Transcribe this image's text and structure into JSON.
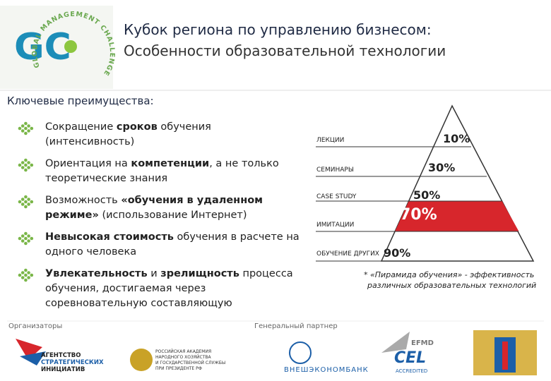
{
  "header": {
    "title_line1": "Кубок региона по управлению бизнесом:",
    "title_line2": "Особенности образовательной технологии",
    "logo_ring": "GLOBAL MANAGEMENT CHALLENGE",
    "logo_letters": "GC"
  },
  "section_title": "Ключевые преимущества:",
  "bullets": [
    {
      "segments": [
        {
          "text": "Сокращение ",
          "bold": false
        },
        {
          "text": "сроков",
          "bold": true
        },
        {
          "text": " обучения (интенсивность)",
          "bold": false
        }
      ]
    },
    {
      "segments": [
        {
          "text": "Ориентация на ",
          "bold": false
        },
        {
          "text": "компетенции",
          "bold": true
        },
        {
          "text": ", а не только теоретические знания",
          "bold": false
        }
      ]
    },
    {
      "segments": [
        {
          "text": "Возможность ",
          "bold": false
        },
        {
          "text": "«обучения в удаленном режиме»",
          "bold": true
        },
        {
          "text": " (использование Интернет)",
          "bold": false
        }
      ]
    },
    {
      "segments": [
        {
          "text": "Невысокая стоимость",
          "bold": true
        },
        {
          "text": " обучения в расчете на одного человека",
          "bold": false
        }
      ]
    },
    {
      "segments": [
        {
          "text": "Увлекательность",
          "bold": true
        },
        {
          "text": " и ",
          "bold": false
        },
        {
          "text": "зрелищность",
          "bold": true
        },
        {
          "text": " процесса обучения, достигаемая через соревновательную составляющую",
          "bold": false
        }
      ]
    }
  ],
  "pyramid": {
    "levels": [
      {
        "label": "ЛЕКЦИИ",
        "percent": "10%"
      },
      {
        "label": "СЕМИНАРЫ",
        "percent": "30%"
      },
      {
        "label": "CASE STUDY",
        "percent": "50%"
      },
      {
        "label": "ИМИТАЦИИ",
        "percent": "70%"
      },
      {
        "label": "ОБУЧЕНИЕ ДРУГИХ",
        "percent": "90%"
      }
    ],
    "footnote_line1": "* «Пирамида обучения» - эффективность",
    "footnote_line2": "различных образовательных технологий"
  },
  "footer": {
    "organizers": "Организаторы",
    "partner": "Генеральный партнер",
    "asi": [
      "АГЕНТСТВО",
      "СТРАТЕГИЧЕСКИХ",
      "ИНИЦИАТИВ"
    ],
    "ranepa": [
      "РОССИЙСКАЯ АКАДЕМИЯ",
      "НАРОДНОГО ХОЗЯЙСТВА",
      "И ГОСУДАРСТВЕННОЙ СЛУЖБЫ",
      "ПРИ ПРЕЗИДЕНТЕ РФ"
    ],
    "veb": "ВНЕШЭКОНОМБАНК",
    "efmd": "EFMD",
    "cel": "CEL",
    "cel_sub": "ACCREDITED"
  }
}
